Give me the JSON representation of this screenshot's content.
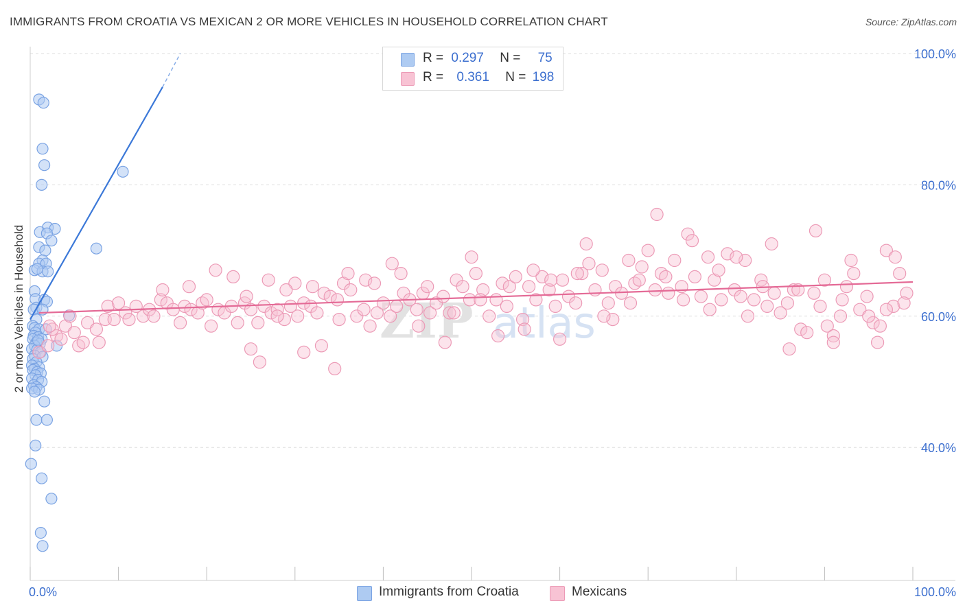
{
  "title": "IMMIGRANTS FROM CROATIA VS MEXICAN 2 OR MORE VEHICLES IN HOUSEHOLD CORRELATION CHART",
  "source": "Source: ZipAtlas.com",
  "watermark": {
    "zip": "ZIP",
    "atlas": "atlas"
  },
  "legend": {
    "r_label": "R =",
    "n_label": "N =",
    "series": [
      {
        "name": "Immigrants from Croatia",
        "r": "0.297",
        "n": "75",
        "fill": "#aecbf2",
        "stroke": "#7aa3e3"
      },
      {
        "name": "Mexicans",
        "r": "0.361",
        "n": "198",
        "fill": "#f8c3d4",
        "stroke": "#ec9ab6"
      }
    ]
  },
  "chart_data": {
    "type": "scatter",
    "title": "IMMIGRANTS FROM CROATIA VS MEXICAN 2 OR MORE VEHICLES IN HOUSEHOLD CORRELATION CHART",
    "xlabel": "",
    "ylabel": "2 or more Vehicles in Household",
    "xlim": [
      0,
      100
    ],
    "ylim": [
      20,
      100
    ],
    "x_tick_labels": [
      "0.0%",
      "100.0%"
    ],
    "y_tick_labels": [
      "40.0%",
      "60.0%",
      "80.0%",
      "100.0%"
    ],
    "y_ticks": [
      40,
      60,
      80,
      100
    ],
    "grid": true,
    "legend_position": "top-center",
    "series": [
      {
        "name": "Immigrants from Croatia",
        "color": "#3b78d8",
        "fill": "#aecbf2",
        "trend": {
          "x0": 0,
          "y0": 59.5,
          "x1": 15,
          "y1": 94.9,
          "dash_x1": 17,
          "dash_y1": 100
        },
        "points": [
          [
            1.0,
            93.0
          ],
          [
            1.5,
            92.5
          ],
          [
            1.4,
            85.5
          ],
          [
            1.6,
            83.0
          ],
          [
            1.3,
            80.0
          ],
          [
            10.5,
            82.0
          ],
          [
            2.0,
            73.5
          ],
          [
            2.8,
            73.3
          ],
          [
            1.1,
            72.8
          ],
          [
            1.9,
            72.6
          ],
          [
            2.4,
            71.5
          ],
          [
            7.5,
            70.3
          ],
          [
            1.0,
            70.5
          ],
          [
            1.7,
            70.0
          ],
          [
            1.4,
            68.5
          ],
          [
            1.0,
            68.0
          ],
          [
            1.8,
            68.0
          ],
          [
            0.5,
            67.0
          ],
          [
            1.4,
            66.8
          ],
          [
            2.0,
            66.8
          ],
          [
            0.8,
            67.2
          ],
          [
            0.5,
            63.8
          ],
          [
            0.6,
            62.6
          ],
          [
            1.6,
            62.5
          ],
          [
            1.9,
            62.2
          ],
          [
            0.7,
            61.3
          ],
          [
            0.4,
            61.0
          ],
          [
            1.4,
            61.0
          ],
          [
            4.4,
            60.1
          ],
          [
            0.7,
            59.5
          ],
          [
            0.3,
            58.5
          ],
          [
            0.5,
            58.2
          ],
          [
            1.0,
            58.0
          ],
          [
            1.8,
            58.0
          ],
          [
            0.6,
            57.5
          ],
          [
            0.4,
            57.0
          ],
          [
            0.9,
            56.8
          ],
          [
            1.3,
            56.5
          ],
          [
            0.3,
            56.5
          ],
          [
            0.7,
            56.0
          ],
          [
            1.1,
            55.8
          ],
          [
            0.5,
            55.5
          ],
          [
            3.0,
            55.5
          ],
          [
            0.2,
            55.0
          ],
          [
            0.8,
            54.9
          ],
          [
            1.2,
            54.5
          ],
          [
            0.5,
            54.0
          ],
          [
            1.4,
            53.8
          ],
          [
            0.3,
            53.5
          ],
          [
            0.7,
            53.0
          ],
          [
            0.2,
            52.5
          ],
          [
            1.0,
            52.2
          ],
          [
            0.5,
            52.0
          ],
          [
            0.3,
            51.8
          ],
          [
            0.8,
            51.5
          ],
          [
            1.2,
            51.3
          ],
          [
            0.6,
            51.0
          ],
          [
            0.2,
            50.5
          ],
          [
            0.9,
            50.3
          ],
          [
            1.3,
            50.0
          ],
          [
            0.4,
            49.5
          ],
          [
            0.7,
            49.2
          ],
          [
            0.2,
            49.0
          ],
          [
            1.0,
            48.8
          ],
          [
            0.5,
            48.5
          ],
          [
            1.6,
            47.0
          ],
          [
            0.7,
            44.2
          ],
          [
            1.9,
            44.2
          ],
          [
            0.6,
            40.3
          ],
          [
            0.1,
            37.5
          ],
          [
            1.3,
            35.3
          ],
          [
            2.4,
            32.2
          ],
          [
            1.2,
            27.0
          ],
          [
            1.4,
            25.0
          ],
          [
            0.9,
            56.3
          ]
        ]
      },
      {
        "name": "Mexicans",
        "color": "#e46a96",
        "fill": "#f8c3d4",
        "trend": {
          "x0": 1,
          "y0": 60.5,
          "x1": 100,
          "y1": 65.2
        },
        "points": [
          [
            1.0,
            54.5
          ],
          [
            2.0,
            55.5
          ],
          [
            3.0,
            57.0
          ],
          [
            2.5,
            58.0
          ],
          [
            4.0,
            58.5
          ],
          [
            5.0,
            57.5
          ],
          [
            6.5,
            59.0
          ],
          [
            7.5,
            58.0
          ],
          [
            8.5,
            59.5
          ],
          [
            3.5,
            56.5
          ],
          [
            5.5,
            55.5
          ],
          [
            7.8,
            56.0
          ],
          [
            8.8,
            61.5
          ],
          [
            9.5,
            59.5
          ],
          [
            10.8,
            60.5
          ],
          [
            11.2,
            59.5
          ],
          [
            12.0,
            61.5
          ],
          [
            12.8,
            60.0
          ],
          [
            13.5,
            61.0
          ],
          [
            14.0,
            60.0
          ],
          [
            14.8,
            62.5
          ],
          [
            15.5,
            62.0
          ],
          [
            16.2,
            61.0
          ],
          [
            17.0,
            59.0
          ],
          [
            17.5,
            61.5
          ],
          [
            18.2,
            61.0
          ],
          [
            19.0,
            60.5
          ],
          [
            19.5,
            62.0
          ],
          [
            20.5,
            58.5
          ],
          [
            21.3,
            61.0
          ],
          [
            22.0,
            60.5
          ],
          [
            22.8,
            61.5
          ],
          [
            23.5,
            59.0
          ],
          [
            24.3,
            62.0
          ],
          [
            25.0,
            61.0
          ],
          [
            25.8,
            59.0
          ],
          [
            26.5,
            61.5
          ],
          [
            27.3,
            60.5
          ],
          [
            28.0,
            61.0
          ],
          [
            28.8,
            59.5
          ],
          [
            29.5,
            61.5
          ],
          [
            30.3,
            60.0
          ],
          [
            31.0,
            62.0
          ],
          [
            31.8,
            61.5
          ],
          [
            32.5,
            60.5
          ],
          [
            33.3,
            63.5
          ],
          [
            34.0,
            63.0
          ],
          [
            34.8,
            62.5
          ],
          [
            35.5,
            65.0
          ],
          [
            36.3,
            64.0
          ],
          [
            37.0,
            60.0
          ],
          [
            37.8,
            61.0
          ],
          [
            38.5,
            58.5
          ],
          [
            39.3,
            60.5
          ],
          [
            40.0,
            62.0
          ],
          [
            40.8,
            60.0
          ],
          [
            41.5,
            61.5
          ],
          [
            42.3,
            63.5
          ],
          [
            43.0,
            62.5
          ],
          [
            43.8,
            61.0
          ],
          [
            44.5,
            63.5
          ],
          [
            45.3,
            60.5
          ],
          [
            46.0,
            62.0
          ],
          [
            46.8,
            63.0
          ],
          [
            47.5,
            60.5
          ],
          [
            48.3,
            65.5
          ],
          [
            49.0,
            64.5
          ],
          [
            49.8,
            62.5
          ],
          [
            50.5,
            66.5
          ],
          [
            51.3,
            64.0
          ],
          [
            52.0,
            60.0
          ],
          [
            52.8,
            62.5
          ],
          [
            53.5,
            65.0
          ],
          [
            54.3,
            64.5
          ],
          [
            55.0,
            66.0
          ],
          [
            55.8,
            59.5
          ],
          [
            56.5,
            64.5
          ],
          [
            57.3,
            62.5
          ],
          [
            58.0,
            66.0
          ],
          [
            58.8,
            64.0
          ],
          [
            59.5,
            61.5
          ],
          [
            60.3,
            65.5
          ],
          [
            61.0,
            63.0
          ],
          [
            61.8,
            62.0
          ],
          [
            62.5,
            66.5
          ],
          [
            63.3,
            68.0
          ],
          [
            64.0,
            64.0
          ],
          [
            64.8,
            67.0
          ],
          [
            65.5,
            62.0
          ],
          [
            66.3,
            64.5
          ],
          [
            67.0,
            63.5
          ],
          [
            67.8,
            68.5
          ],
          [
            68.5,
            65.0
          ],
          [
            69.3,
            67.5
          ],
          [
            70.0,
            70.0
          ],
          [
            70.8,
            64.0
          ],
          [
            71.5,
            66.5
          ],
          [
            72.3,
            63.5
          ],
          [
            73.0,
            68.5
          ],
          [
            73.8,
            64.5
          ],
          [
            74.5,
            72.5
          ],
          [
            75.3,
            66.0
          ],
          [
            76.0,
            63.0
          ],
          [
            76.8,
            69.0
          ],
          [
            77.5,
            65.5
          ],
          [
            78.3,
            62.5
          ],
          [
            79.0,
            69.5
          ],
          [
            79.8,
            64.0
          ],
          [
            80.5,
            63.0
          ],
          [
            81.3,
            60.0
          ],
          [
            82.0,
            62.5
          ],
          [
            82.8,
            65.5
          ],
          [
            83.5,
            61.5
          ],
          [
            84.3,
            63.5
          ],
          [
            85.0,
            60.5
          ],
          [
            85.8,
            62.0
          ],
          [
            86.5,
            64.0
          ],
          [
            87.3,
            58.0
          ],
          [
            88.0,
            57.5
          ],
          [
            88.8,
            63.5
          ],
          [
            89.5,
            61.5
          ],
          [
            90.3,
            58.5
          ],
          [
            91.0,
            57.0
          ],
          [
            91.8,
            60.0
          ],
          [
            92.5,
            64.5
          ],
          [
            93.3,
            66.5
          ],
          [
            94.0,
            61.0
          ],
          [
            94.8,
            63.0
          ],
          [
            95.5,
            59.0
          ],
          [
            96.3,
            58.5
          ],
          [
            97.0,
            70.0
          ],
          [
            97.8,
            61.5
          ],
          [
            98.5,
            66.5
          ],
          [
            99.3,
            63.5
          ],
          [
            35.0,
            59.5
          ],
          [
            30.0,
            65.0
          ],
          [
            33.0,
            55.5
          ],
          [
            41.0,
            68.0
          ],
          [
            44.0,
            58.5
          ],
          [
            47.0,
            56.0
          ],
          [
            50.0,
            69.0
          ],
          [
            54.0,
            61.5
          ],
          [
            57.0,
            67.0
          ],
          [
            60.0,
            56.5
          ],
          [
            63.0,
            71.0
          ],
          [
            66.0,
            59.5
          ],
          [
            69.0,
            65.5
          ],
          [
            71.0,
            75.5
          ],
          [
            75.0,
            71.5
          ],
          [
            78.0,
            67.0
          ],
          [
            81.0,
            68.5
          ],
          [
            84.0,
            71.0
          ],
          [
            86.0,
            55.0
          ],
          [
            89.0,
            73.0
          ],
          [
            91.0,
            56.0
          ],
          [
            93.0,
            68.5
          ],
          [
            96.0,
            56.0
          ],
          [
            98.0,
            69.0
          ],
          [
            25.0,
            55.0
          ],
          [
            21.0,
            67.0
          ],
          [
            18.0,
            64.5
          ],
          [
            27.0,
            65.5
          ],
          [
            29.0,
            64.0
          ],
          [
            32.0,
            64.5
          ],
          [
            36.0,
            66.5
          ],
          [
            38.0,
            65.5
          ],
          [
            39.0,
            65.0
          ],
          [
            42.0,
            66.5
          ],
          [
            45.0,
            64.5
          ],
          [
            48.0,
            60.5
          ],
          [
            51.0,
            62.5
          ],
          [
            56.0,
            58.0
          ],
          [
            59.0,
            65.5
          ],
          [
            62.0,
            66.5
          ],
          [
            65.0,
            60.0
          ],
          [
            68.0,
            62.0
          ],
          [
            72.0,
            66.0
          ],
          [
            74.0,
            62.5
          ],
          [
            77.0,
            61.0
          ],
          [
            80.0,
            69.0
          ],
          [
            83.0,
            64.5
          ],
          [
            87.0,
            64.0
          ],
          [
            90.0,
            65.5
          ],
          [
            92.0,
            62.5
          ],
          [
            95.0,
            60.0
          ],
          [
            97.0,
            61.0
          ],
          [
            99.0,
            62.0
          ],
          [
            26.0,
            53.0
          ],
          [
            31.0,
            54.5
          ],
          [
            34.5,
            52.0
          ],
          [
            2.2,
            58.5
          ],
          [
            4.5,
            60.0
          ],
          [
            6.0,
            56.0
          ],
          [
            10.0,
            62.0
          ],
          [
            15.0,
            64.0
          ],
          [
            23.0,
            66.0
          ],
          [
            28.0,
            60.0
          ],
          [
            20.0,
            62.5
          ],
          [
            24.5,
            63.0
          ],
          [
            53.0,
            57.0
          ]
        ]
      }
    ]
  }
}
